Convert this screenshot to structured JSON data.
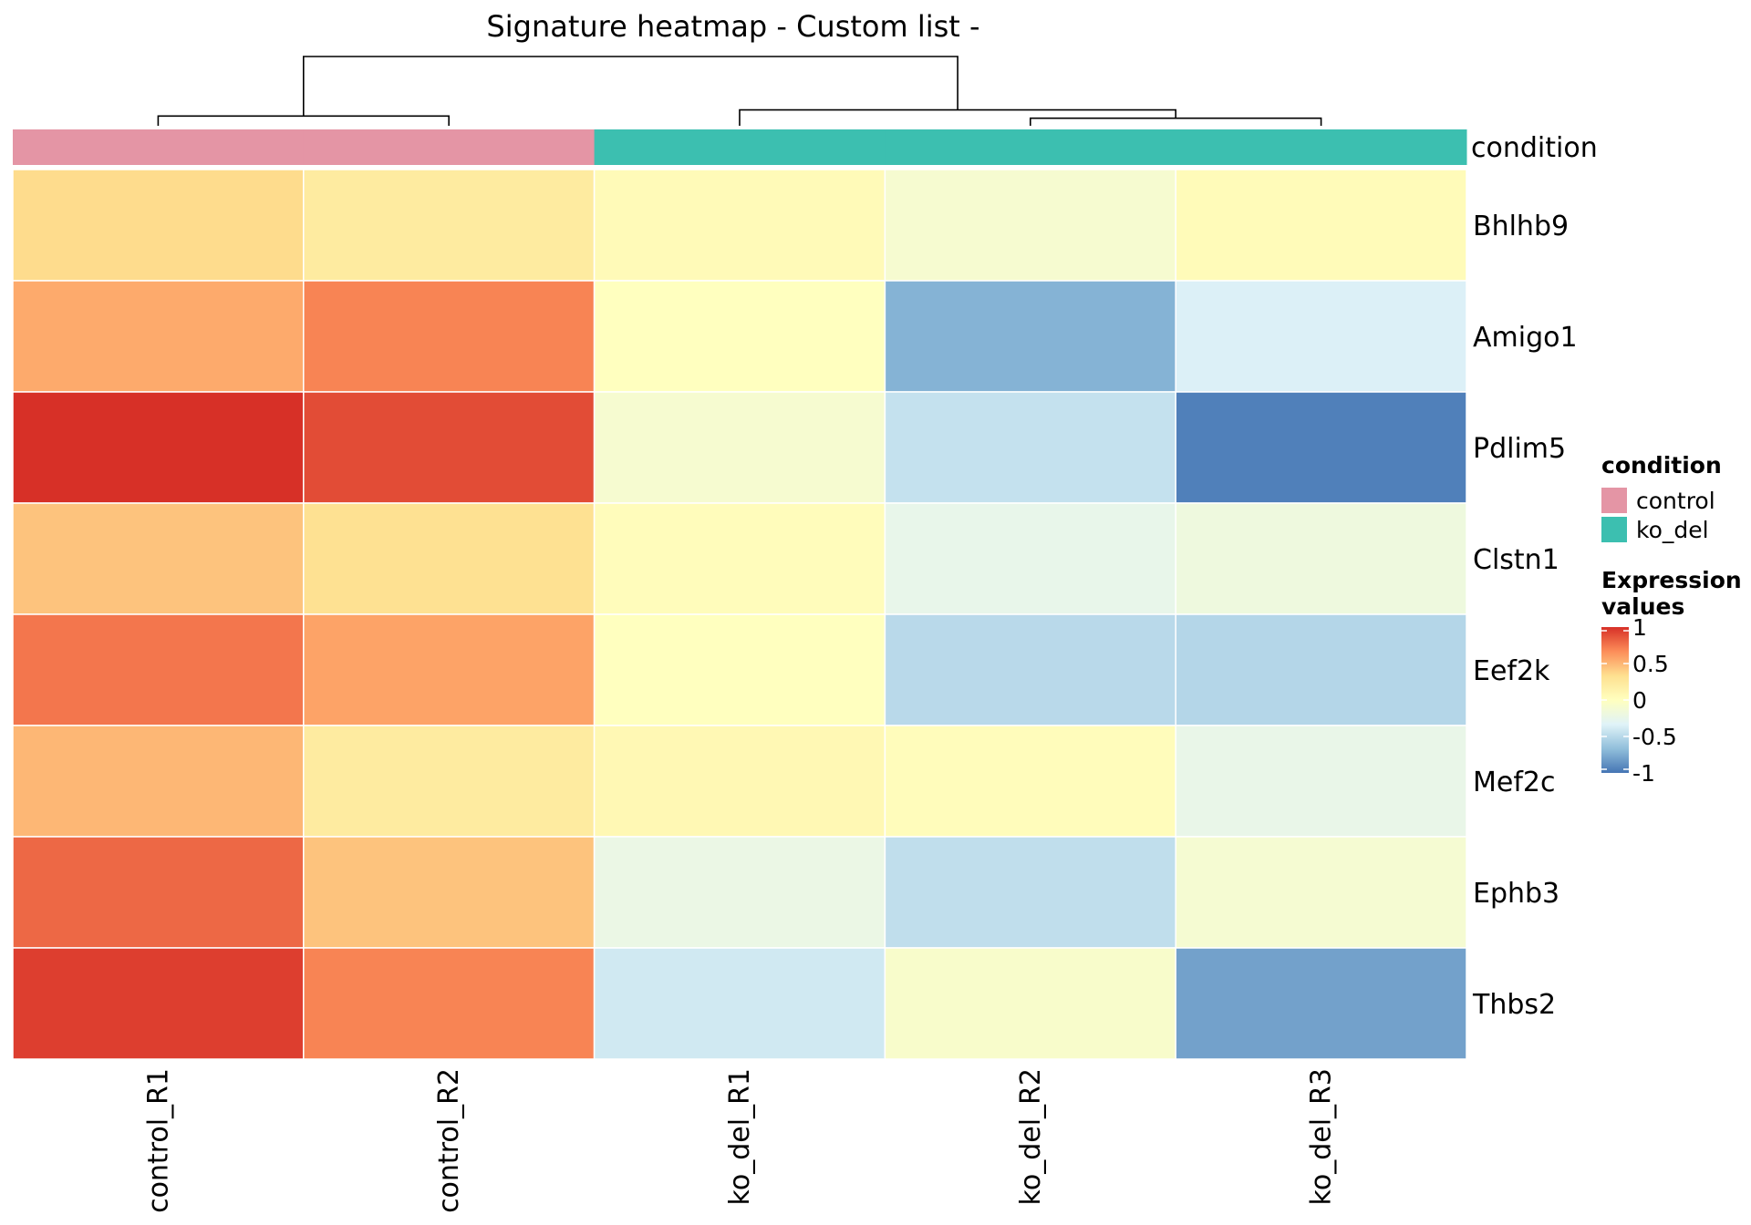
{
  "chart_data": {
    "type": "heatmap",
    "title": "Signature heatmap - Custom list -",
    "samples": [
      "control_R1",
      "control_R2",
      "ko_del_R1",
      "ko_del_R2",
      "ko_del_R3"
    ],
    "genes": [
      "Bhlhb9",
      "Amigo1",
      "Pdlim5",
      "Clstn1",
      "Eef2k",
      "Mef2c",
      "Ephb3",
      "Thbs2"
    ],
    "values": [
      [
        0.35,
        0.22,
        0.05,
        -0.1,
        0.04
      ],
      [
        0.55,
        0.7,
        0.0,
        -0.72,
        -0.35
      ],
      [
        1.0,
        0.9,
        -0.1,
        -0.45,
        -0.95
      ],
      [
        0.45,
        0.32,
        0.03,
        -0.25,
        -0.18
      ],
      [
        0.75,
        0.58,
        0.0,
        -0.5,
        -0.52
      ],
      [
        0.5,
        0.22,
        0.08,
        0.03,
        -0.24
      ],
      [
        0.8,
        0.45,
        -0.22,
        -0.47,
        -0.11
      ],
      [
        0.95,
        0.7,
        -0.4,
        -0.07,
        -0.8
      ]
    ],
    "annotation": {
      "name": "condition",
      "values": [
        "control",
        "control",
        "ko_del",
        "ko_del",
        "ko_del"
      ],
      "legend": [
        {
          "label": "control",
          "color": "#E495A5"
        },
        {
          "label": "ko_del",
          "color": "#3CBFB0"
        }
      ]
    },
    "color_scale": {
      "title_line1": "Expression",
      "title_line2": "values",
      "min": -1,
      "max": 1,
      "ticks": [
        "1",
        "0.5",
        "0",
        "-0.5",
        "-1"
      ],
      "tick_values": [
        1,
        0.5,
        0,
        -0.5,
        -1
      ],
      "stops": [
        "#4575B4",
        "#91BFDB",
        "#E0F3F8",
        "#FFFFBF",
        "#FEE090",
        "#FC8D59",
        "#D73027"
      ]
    },
    "dendrogram": {
      "merges": [
        [
          0,
          1
        ],
        [
          3,
          4
        ],
        [
          2,
          6
        ],
        [
          5,
          7
        ]
      ],
      "heights": [
        0.14,
        0.11,
        0.23,
        1.0
      ]
    }
  }
}
